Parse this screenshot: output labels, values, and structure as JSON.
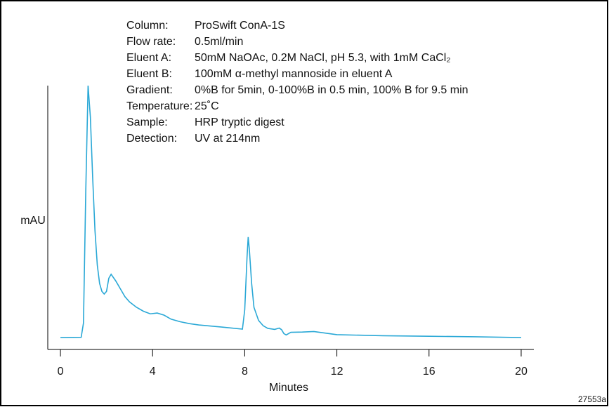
{
  "chart_data": {
    "type": "line",
    "y_label": "mAU",
    "x_label": "Minutes",
    "figure_id": "27553a",
    "annotations": [
      {
        "label": "Column:",
        "text": "ProSwift ConA-1S"
      },
      {
        "label": "Flow rate:",
        "text": "0.5ml/min"
      },
      {
        "label": "Eluent A:",
        "text": "50mM NaOAc, 0.2M NaCl, pH 5.3, with 1mM CaCl₂"
      },
      {
        "label": "Eluent B:",
        "text": "100mM α-methyl mannoside in eluent A"
      },
      {
        "label": "Gradient:",
        "text": "0%B for 5min, 0-100%B in 0.5 min, 100% B for 9.5 min"
      },
      {
        "label": "Temperature:",
        "text": "25˚C"
      },
      {
        "label": "Sample:",
        "text": "HRP tryptic digest"
      },
      {
        "label": "Detection:",
        "text": "UV at 214nm"
      }
    ],
    "xlim": [
      -0.55,
      20.55
    ],
    "xticks": [
      0,
      4,
      8,
      12,
      16,
      20
    ],
    "ylim": [
      0,
      100
    ],
    "x": [
      0,
      0.9,
      1.0,
      1.1,
      1.2,
      1.3,
      1.4,
      1.5,
      1.6,
      1.7,
      1.8,
      1.9,
      2.0,
      2.1,
      2.2,
      2.4,
      2.6,
      2.8,
      3.0,
      3.3,
      3.6,
      3.9,
      4.2,
      4.5,
      4.8,
      5.2,
      5.6,
      6,
      7,
      7.9,
      8.0,
      8.1,
      8.15,
      8.2,
      8.3,
      8.4,
      8.6,
      8.8,
      9,
      9.3,
      9.5,
      9.6,
      9.7,
      9.8,
      10,
      10.5,
      11,
      11.5,
      12,
      14,
      16,
      18,
      20
    ],
    "series": [
      {
        "color": "#2aa8d6",
        "values": [
          4.5,
          4.6,
          10,
          60,
          100,
          88,
          65,
          45,
          32,
          25,
          22,
          21,
          22,
          27,
          28.5,
          26,
          23,
          20,
          18,
          16,
          14.5,
          13.5,
          13.8,
          13,
          11.5,
          10.5,
          9.8,
          9.3,
          8.5,
          7.7,
          15,
          35,
          42.6,
          38,
          25,
          16,
          11,
          9,
          8,
          7.6,
          8.1,
          7.5,
          6,
          5.5,
          6.5,
          6.6,
          6.8,
          6.2,
          5.6,
          5.2,
          5,
          4.8,
          4.5
        ]
      }
    ]
  }
}
